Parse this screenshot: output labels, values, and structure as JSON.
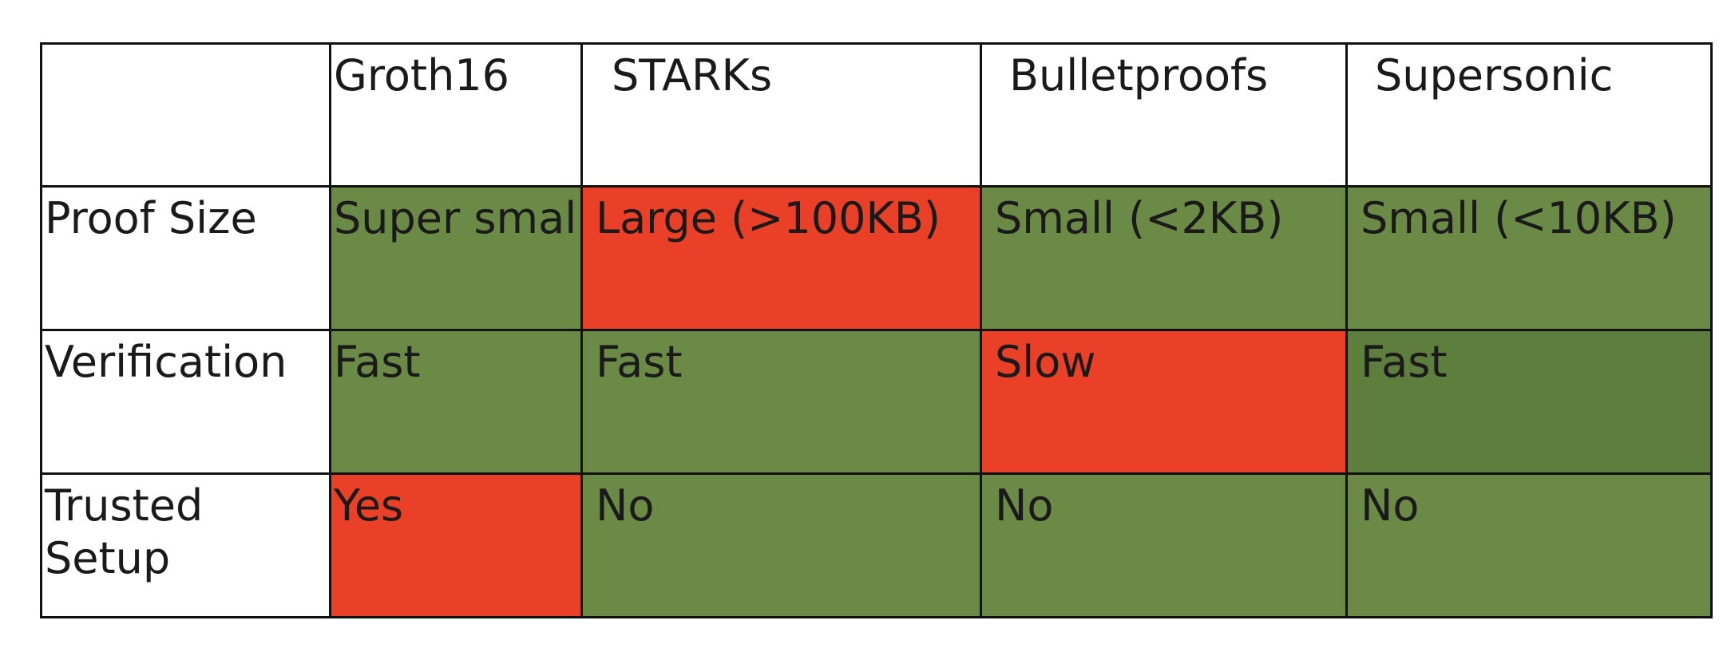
{
  "table": {
    "corner": "",
    "columns": [
      {
        "label": "Groth16"
      },
      {
        "label": "STARKs"
      },
      {
        "label": "Bulletproofs"
      },
      {
        "label": "Supersonic"
      }
    ],
    "rows": [
      {
        "label": "Proof Size",
        "cells": [
          {
            "text": "Super small",
            "status": "good"
          },
          {
            "text": "Large (>100KB)",
            "status": "bad"
          },
          {
            "text": "Small (<2KB)",
            "status": "good"
          },
          {
            "text": "Small (<10KB)",
            "status": "good"
          }
        ]
      },
      {
        "label": "Verification",
        "cells": [
          {
            "text": "Fast",
            "status": "good"
          },
          {
            "text": "Fast",
            "status": "good"
          },
          {
            "text": "Slow",
            "status": "bad"
          },
          {
            "text": "Fast",
            "status": "good-dark"
          }
        ]
      },
      {
        "label": "Trusted Setup",
        "cells": [
          {
            "text": "Yes",
            "status": "bad"
          },
          {
            "text": "No",
            "status": "good"
          },
          {
            "text": "No",
            "status": "good"
          },
          {
            "text": "No",
            "status": "good"
          }
        ]
      }
    ]
  },
  "colors": {
    "good": "#6a8a46",
    "good-dark": "#5e7e3d",
    "bad": "#ea4027",
    "header_bg": "#ffffff",
    "border": "#111111"
  }
}
